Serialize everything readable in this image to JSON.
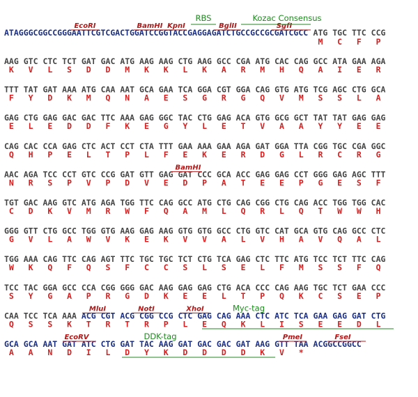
{
  "header": {
    "vector": "ATAGGGCGGCCGGGAATTCGTCGACTGGATCCGGTACCGAGGAGATCTGCCGCCGCGATCGCC",
    "codons": [
      "ATG",
      "TGC",
      "TTC",
      "CCG"
    ],
    "protein": [
      "M",
      "C",
      "F",
      "P"
    ],
    "enzymes": [
      "EcoRI",
      "BamHI",
      "KpnI",
      "BglII",
      "SgfI"
    ],
    "features": [
      "RBS",
      "Kozac Consensus"
    ]
  },
  "rows": [
    {
      "codons": [
        "AAG",
        "GTC",
        "CTC",
        "TCT",
        "GAT",
        "GAC",
        "ATG",
        "AAG",
        "AAG",
        "CTG",
        "AAG",
        "GCC",
        "CGA",
        "ATG",
        "CAC",
        "CAG",
        "GCC",
        "ATA",
        "GAA",
        "AGA"
      ],
      "protein": [
        "K",
        "V",
        "L",
        "S",
        "D",
        "D",
        "M",
        "K",
        "K",
        "L",
        "K",
        "A",
        "R",
        "M",
        "H",
        "Q",
        "A",
        "I",
        "E",
        "R"
      ]
    },
    {
      "codons": [
        "TTT",
        "TAT",
        "GAT",
        "AAA",
        "ATG",
        "CAA",
        "AAT",
        "GCA",
        "GAA",
        "TCA",
        "GGA",
        "CGT",
        "GGA",
        "CAG",
        "GTG",
        "ATG",
        "TCG",
        "AGC",
        "CTG",
        "GCA"
      ],
      "protein": [
        "F",
        "Y",
        "D",
        "K",
        "M",
        "Q",
        "N",
        "A",
        "E",
        "S",
        "G",
        "R",
        "G",
        "Q",
        "V",
        "M",
        "S",
        "S",
        "L",
        "A"
      ]
    },
    {
      "codons": [
        "GAG",
        "CTG",
        "GAG",
        "GAC",
        "GAC",
        "TTC",
        "AAA",
        "GAG",
        "GGC",
        "TAC",
        "CTG",
        "GAG",
        "ACA",
        "GTG",
        "GCG",
        "GCT",
        "TAT",
        "TAT",
        "GAG",
        "GAG"
      ],
      "protein": [
        "E",
        "L",
        "E",
        "D",
        "D",
        "F",
        "K",
        "E",
        "G",
        "Y",
        "L",
        "E",
        "T",
        "V",
        "A",
        "A",
        "Y",
        "Y",
        "E",
        "E"
      ]
    },
    {
      "codons": [
        "CAG",
        "CAC",
        "CCA",
        "GAG",
        "CTC",
        "ACT",
        "CCT",
        "CTA",
        "TTT",
        "GAA",
        "AAA",
        "GAA",
        "AGA",
        "GAT",
        "GGA",
        "TTA",
        "CGG",
        "TGC",
        "CGA",
        "GGC"
      ],
      "protein": [
        "Q",
        "H",
        "P",
        "E",
        "L",
        "T",
        "P",
        "L",
        "F",
        "E",
        "K",
        "E",
        "R",
        "D",
        "G",
        "L",
        "R",
        "C",
        "R",
        "G"
      ]
    },
    {
      "codons": [
        "AAC",
        "AGA",
        "TCC",
        "CCT",
        "GTC",
        "CCG",
        "GAT",
        "GTT",
        "GAG",
        "GAT",
        "CCC",
        "GCA",
        "ACC",
        "GAG",
        "GAG",
        "CCT",
        "GGG",
        "GAG",
        "AGC",
        "TTT"
      ],
      "protein": [
        "N",
        "R",
        "S",
        "P",
        "V",
        "P",
        "D",
        "V",
        "E",
        "D",
        "P",
        "A",
        "T",
        "E",
        "E",
        "P",
        "G",
        "E",
        "S",
        "F"
      ],
      "enzymes": [
        "BamHI"
      ]
    },
    {
      "codons": [
        "TGT",
        "GAC",
        "AAG",
        "GTC",
        "ATG",
        "AGA",
        "TGG",
        "TTC",
        "CAG",
        "GCC",
        "ATG",
        "CTG",
        "CAG",
        "CGG",
        "CTG",
        "CAG",
        "ACC",
        "TGG",
        "TGG",
        "CAC"
      ],
      "protein": [
        "C",
        "D",
        "K",
        "V",
        "M",
        "R",
        "W",
        "F",
        "Q",
        "A",
        "M",
        "L",
        "Q",
        "R",
        "L",
        "Q",
        "T",
        "W",
        "W",
        "H"
      ]
    },
    {
      "codons": [
        "GGG",
        "GTT",
        "CTG",
        "GCC",
        "TGG",
        "GTG",
        "AAG",
        "GAG",
        "AAG",
        "GTG",
        "GTG",
        "GCC",
        "CTG",
        "GTC",
        "CAT",
        "GCA",
        "GTG",
        "CAG",
        "GCC",
        "CTC"
      ],
      "protein": [
        "G",
        "V",
        "L",
        "A",
        "W",
        "V",
        "K",
        "E",
        "K",
        "V",
        "V",
        "A",
        "L",
        "V",
        "H",
        "A",
        "V",
        "Q",
        "A",
        "L"
      ]
    },
    {
      "codons": [
        "TGG",
        "AAA",
        "CAG",
        "TTC",
        "CAG",
        "AGT",
        "TTC",
        "TGC",
        "TGC",
        "TCT",
        "CTG",
        "TCA",
        "GAG",
        "CTC",
        "TTC",
        "ATG",
        "TCC",
        "TCT",
        "TTC",
        "CAG"
      ],
      "protein": [
        "W",
        "K",
        "Q",
        "F",
        "Q",
        "S",
        "F",
        "C",
        "C",
        "S",
        "L",
        "S",
        "E",
        "L",
        "F",
        "M",
        "S",
        "S",
        "F",
        "Q"
      ]
    },
    {
      "codons": [
        "TCC",
        "TAC",
        "GGA",
        "GCC",
        "CCA",
        "CGG",
        "GGG",
        "GAC",
        "AAG",
        "GAG",
        "GAG",
        "CTG",
        "ACA",
        "CCC",
        "CAG",
        "AAG",
        "TGC",
        "TCT",
        "GAA",
        "CCC"
      ],
      "protein": [
        "S",
        "Y",
        "G",
        "A",
        "P",
        "R",
        "G",
        "D",
        "K",
        "E",
        "E",
        "L",
        "T",
        "P",
        "Q",
        "K",
        "C",
        "S",
        "E",
        "P"
      ]
    },
    {
      "codons": [
        "CAA",
        "TCC",
        "TCA",
        "AAA",
        "ACG",
        "CGT",
        "ACG",
        "CGG",
        "CCG",
        "CTC",
        "GAG",
        "CAG",
        "AAA",
        "CTC",
        "ATC",
        "TCA",
        "GAA",
        "GAG",
        "GAT",
        "CTG"
      ],
      "protein": [
        "Q",
        "S",
        "S",
        "K",
        "T",
        "R",
        "T",
        "R",
        "P",
        "L",
        "E",
        "Q",
        "K",
        "L",
        "I",
        "S",
        "E",
        "E",
        "D",
        "L"
      ],
      "enzymes": [
        "MluI",
        "NotI",
        "XhoI"
      ],
      "features": [
        "Myc-tag"
      ]
    },
    {
      "codons": [
        "GCA",
        "GCA",
        "AAT",
        "GAT",
        "ATC",
        "CTG",
        "GAT",
        "TAC",
        "AAG",
        "GAT",
        "GAC",
        "GAC",
        "GAT",
        "AAG",
        "GTT",
        "TAA"
      ],
      "tail": "ACGGCCGGCC",
      "protein": [
        "A",
        "A",
        "N",
        "D",
        "I",
        "L",
        "D",
        "Y",
        "K",
        "D",
        "D",
        "D",
        "D",
        "K",
        "V",
        "*"
      ],
      "enzymes": [
        "EcoRV",
        "PmeI",
        "FseI"
      ],
      "features": [
        "DDK-tag"
      ]
    }
  ]
}
